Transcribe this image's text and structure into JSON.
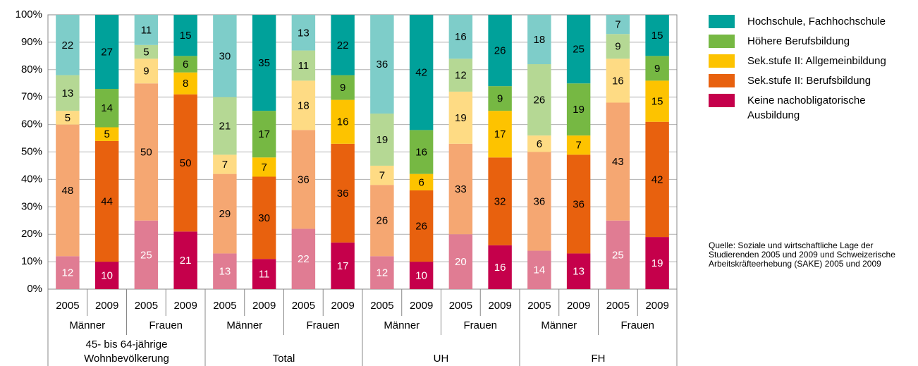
{
  "chart_data": {
    "type": "stacked_bar",
    "categories": [
      "2005",
      "2009",
      "2005",
      "2009",
      "2005",
      "2009",
      "2005",
      "2009",
      "2005",
      "2009",
      "2005",
      "2009",
      "2005",
      "2009",
      "2005",
      "2009"
    ],
    "categories_level2": [
      "Männer",
      "Frauen",
      "Männer",
      "Frauen",
      "Männer",
      "Frauen",
      "Männer",
      "Frauen"
    ],
    "categories_level3": [
      "45- bis 64-jährige Wohnbevölkerung",
      "Total",
      "UH",
      "FH"
    ],
    "series": [
      {
        "name": "Keine nachobligatorische Ausbildung",
        "color": "#c5004b",
        "light_color": "#e07c93",
        "label_color": "#ffffff",
        "values": [
          12,
          10,
          25,
          21,
          13,
          11,
          22,
          17,
          12,
          10,
          20,
          16,
          14,
          13,
          25,
          19
        ]
      },
      {
        "name": "Sek.stufe II: Berufsbildung",
        "color": "#e8610e",
        "light_color": "#f5a772",
        "label_color": "#000000",
        "values": [
          48,
          44,
          50,
          50,
          29,
          30,
          36,
          36,
          26,
          26,
          33,
          32,
          36,
          36,
          43,
          42
        ]
      },
      {
        "name": "Sek.stufe II: Allgemeinbildung",
        "color": "#fdc300",
        "light_color": "#fedb84",
        "label_color": "#000000",
        "values": [
          5,
          5,
          9,
          8,
          7,
          7,
          18,
          16,
          7,
          6,
          19,
          17,
          6,
          7,
          16,
          15
        ]
      },
      {
        "name": "Höhere Berufsbildung",
        "color": "#76b843",
        "light_color": "#b5d894",
        "label_color": "#000000",
        "values": [
          13,
          14,
          5,
          6,
          21,
          17,
          11,
          9,
          19,
          16,
          12,
          9,
          26,
          19,
          9,
          9
        ]
      },
      {
        "name": "Hochschule, Fachhochschule",
        "color": "#00a19a",
        "light_color": "#7ecdc9",
        "label_color": "#000000",
        "values": [
          22,
          27,
          11,
          15,
          30,
          35,
          13,
          22,
          36,
          42,
          16,
          26,
          18,
          25,
          7,
          15
        ]
      }
    ],
    "ylim": [
      0,
      100
    ],
    "yticks": [
      {
        "value": 0,
        "label": "0%"
      },
      {
        "value": 10,
        "label": "10%"
      },
      {
        "value": 20,
        "label": "20%"
      },
      {
        "value": 30,
        "label": "30%"
      },
      {
        "value": 40,
        "label": "40%"
      },
      {
        "value": 50,
        "label": "50%"
      },
      {
        "value": 60,
        "label": "60%"
      },
      {
        "value": 70,
        "label": "70%"
      },
      {
        "value": 80,
        "label": "80%"
      },
      {
        "value": 90,
        "label": "90%"
      },
      {
        "value": 100,
        "label": "100%"
      }
    ],
    "grid": true,
    "legend": "right",
    "source": "Quelle: Soziale und wirtschaftliche Lage der Studierenden 2005 und 2009 und Schweizerische Arbeitskräfteerhebung (SAKE) 2005 und 2009"
  }
}
